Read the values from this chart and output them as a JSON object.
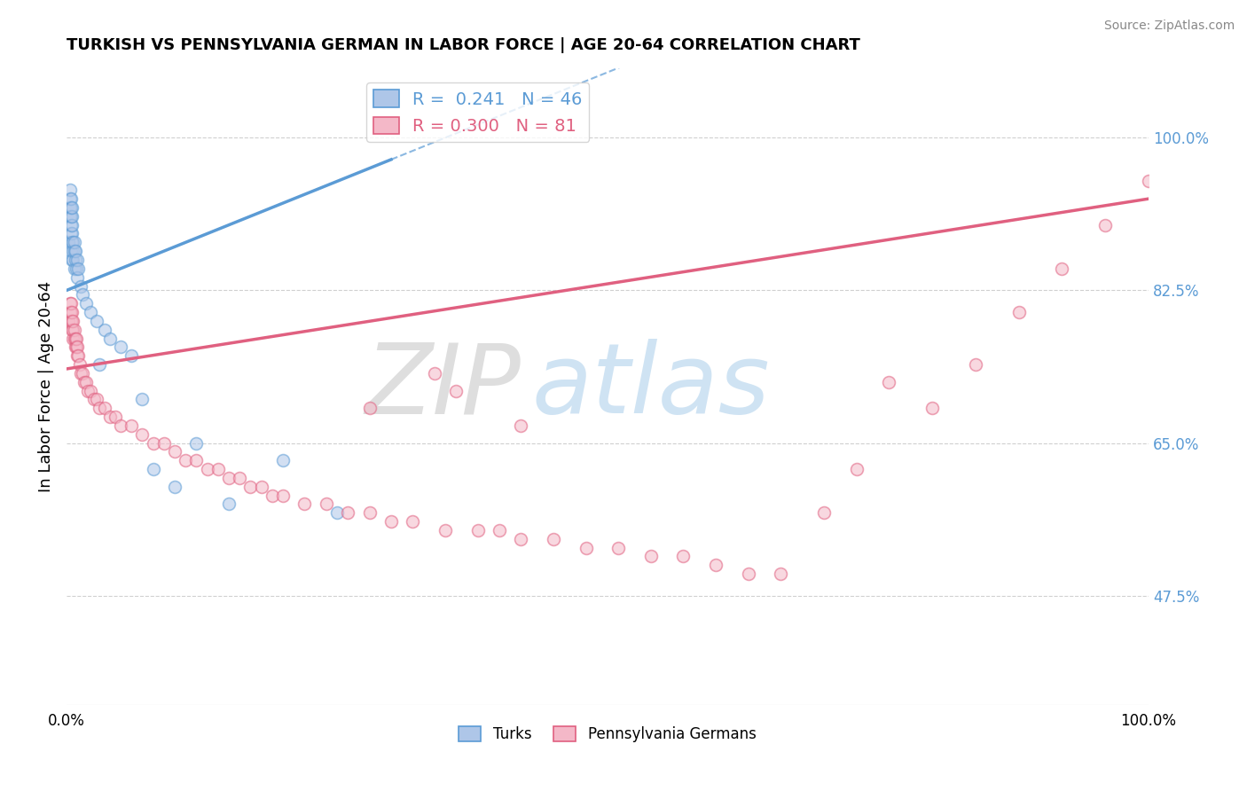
{
  "title": "TURKISH VS PENNSYLVANIA GERMAN IN LABOR FORCE | AGE 20-64 CORRELATION CHART",
  "source": "Source: ZipAtlas.com",
  "ylabel": "In Labor Force | Age 20-64",
  "xlim": [
    0.0,
    1.0
  ],
  "ylim": [
    0.35,
    1.08
  ],
  "y_tick_values_right": [
    0.475,
    0.65,
    0.825,
    1.0
  ],
  "y_tick_labels_right": [
    "47.5%",
    "65.0%",
    "82.5%",
    "100.0%"
  ],
  "x_tick_values": [
    0.0,
    1.0
  ],
  "x_tick_labels": [
    "0.0%",
    "100.0%"
  ],
  "background_color": "#ffffff",
  "grid_color": "#d0d0d0",
  "turks_color": "#aec6e8",
  "turks_edge_color": "#5b9bd5",
  "penn_color": "#f4b8c8",
  "penn_edge_color": "#e06080",
  "legend_turks_R": "0.241",
  "legend_turks_N": "46",
  "legend_penn_R": "0.300",
  "legend_penn_N": "81",
  "turks_x": [
    0.002,
    0.003,
    0.003,
    0.003,
    0.003,
    0.004,
    0.004,
    0.004,
    0.004,
    0.004,
    0.004,
    0.005,
    0.005,
    0.005,
    0.005,
    0.005,
    0.005,
    0.006,
    0.006,
    0.006,
    0.007,
    0.007,
    0.007,
    0.008,
    0.008,
    0.009,
    0.01,
    0.01,
    0.011,
    0.013,
    0.015,
    0.018,
    0.022,
    0.028,
    0.035,
    0.04,
    0.05,
    0.06,
    0.08,
    0.1,
    0.15,
    0.03,
    0.07,
    0.12,
    0.2,
    0.25
  ],
  "turks_y": [
    0.88,
    0.91,
    0.92,
    0.93,
    0.94,
    0.87,
    0.89,
    0.9,
    0.91,
    0.92,
    0.93,
    0.86,
    0.88,
    0.89,
    0.9,
    0.91,
    0.92,
    0.86,
    0.87,
    0.88,
    0.85,
    0.87,
    0.88,
    0.86,
    0.87,
    0.85,
    0.84,
    0.86,
    0.85,
    0.83,
    0.82,
    0.81,
    0.8,
    0.79,
    0.78,
    0.77,
    0.76,
    0.75,
    0.62,
    0.6,
    0.58,
    0.74,
    0.7,
    0.65,
    0.63,
    0.57
  ],
  "penn_x": [
    0.002,
    0.003,
    0.003,
    0.004,
    0.004,
    0.004,
    0.005,
    0.005,
    0.005,
    0.006,
    0.006,
    0.006,
    0.007,
    0.007,
    0.008,
    0.008,
    0.009,
    0.009,
    0.01,
    0.01,
    0.011,
    0.012,
    0.013,
    0.015,
    0.016,
    0.018,
    0.02,
    0.022,
    0.025,
    0.028,
    0.03,
    0.035,
    0.04,
    0.045,
    0.05,
    0.06,
    0.07,
    0.08,
    0.09,
    0.1,
    0.11,
    0.12,
    0.13,
    0.14,
    0.15,
    0.16,
    0.17,
    0.18,
    0.19,
    0.2,
    0.22,
    0.24,
    0.26,
    0.28,
    0.3,
    0.32,
    0.35,
    0.38,
    0.4,
    0.42,
    0.45,
    0.48,
    0.51,
    0.54,
    0.57,
    0.6,
    0.63,
    0.66,
    0.7,
    0.73,
    0.76,
    0.8,
    0.84,
    0.88,
    0.92,
    0.96,
    1.0,
    0.34,
    0.36,
    0.28,
    0.42
  ],
  "penn_y": [
    0.79,
    0.8,
    0.81,
    0.79,
    0.8,
    0.81,
    0.78,
    0.79,
    0.8,
    0.77,
    0.78,
    0.79,
    0.77,
    0.78,
    0.76,
    0.77,
    0.76,
    0.77,
    0.75,
    0.76,
    0.75,
    0.74,
    0.73,
    0.73,
    0.72,
    0.72,
    0.71,
    0.71,
    0.7,
    0.7,
    0.69,
    0.69,
    0.68,
    0.68,
    0.67,
    0.67,
    0.66,
    0.65,
    0.65,
    0.64,
    0.63,
    0.63,
    0.62,
    0.62,
    0.61,
    0.61,
    0.6,
    0.6,
    0.59,
    0.59,
    0.58,
    0.58,
    0.57,
    0.57,
    0.56,
    0.56,
    0.55,
    0.55,
    0.55,
    0.54,
    0.54,
    0.53,
    0.53,
    0.52,
    0.52,
    0.51,
    0.5,
    0.5,
    0.57,
    0.62,
    0.72,
    0.69,
    0.74,
    0.8,
    0.85,
    0.9,
    0.95,
    0.73,
    0.71,
    0.69,
    0.67
  ],
  "turks_trend_x": [
    0.0,
    0.3
  ],
  "turks_trend_y": [
    0.825,
    0.975
  ],
  "penn_trend_x": [
    0.0,
    1.0
  ],
  "penn_trend_y": [
    0.735,
    0.93
  ],
  "watermark_zip": "ZIP",
  "watermark_atlas": "atlas",
  "marker_size": 100,
  "marker_alpha": 0.55,
  "right_label_color": "#5b9bd5",
  "legend_R_color": "#5b9bd5",
  "legend_fontsize": 14
}
